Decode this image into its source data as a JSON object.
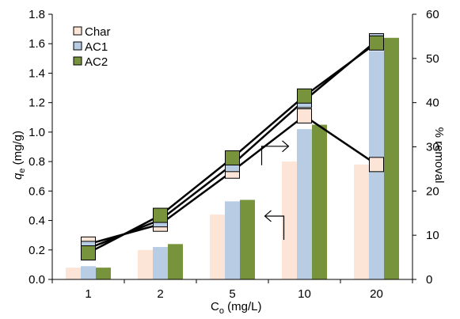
{
  "chart_data": {
    "type": "bar",
    "combo": "bar-plus-line (dual axis)",
    "categories": [
      "1",
      "2",
      "5",
      "10",
      "20"
    ],
    "xlabel": {
      "main": "C",
      "sub": "o",
      "rest": " (mg/L)"
    },
    "ylabel_left": {
      "main": "q",
      "sub": "e",
      "rest": " (mg/g)"
    },
    "ylabel_right": "% removal",
    "ylim_left": [
      0,
      1.8
    ],
    "ylim_right": [
      0,
      60
    ],
    "yticks_left": [
      "0.0",
      "0.2",
      "0.4",
      "0.6",
      "0.8",
      "1.0",
      "1.2",
      "1.4",
      "1.6",
      "1.8"
    ],
    "yticks_right": [
      "0",
      "10",
      "20",
      "30",
      "40",
      "50",
      "60"
    ],
    "legend_position": "top-left",
    "grid": false,
    "bar_series": [
      {
        "name": "Char",
        "color": "#fce4d6",
        "values": [
          0.08,
          0.2,
          0.44,
          0.8,
          0.78
        ]
      },
      {
        "name": "AC1",
        "color": "#b8cce4",
        "values": [
          0.09,
          0.22,
          0.53,
          1.02,
          1.55
        ]
      },
      {
        "name": "AC2",
        "color": "#77933c",
        "values": [
          0.08,
          0.24,
          0.54,
          1.05,
          1.64
        ]
      }
    ],
    "line_series_right_axis": [
      {
        "marker_for": "Char",
        "values": [
          8.0,
          12.5,
          24.5,
          37.0,
          26.0
        ]
      },
      {
        "marker_for": "AC1",
        "values": [
          7.0,
          13.5,
          26.0,
          40.5,
          54.0
        ]
      },
      {
        "marker_for": "AC2",
        "values": [
          6.0,
          14.5,
          27.5,
          41.5,
          53.5
        ]
      }
    ],
    "annotations": [
      {
        "kind": "arrow-right",
        "points_to": "right axis",
        "near_category": "10",
        "near_value_left": 0.85
      },
      {
        "kind": "arrow-left",
        "points_to": "left axis",
        "near_category": "10",
        "near_value_left": 0.43
      }
    ]
  }
}
